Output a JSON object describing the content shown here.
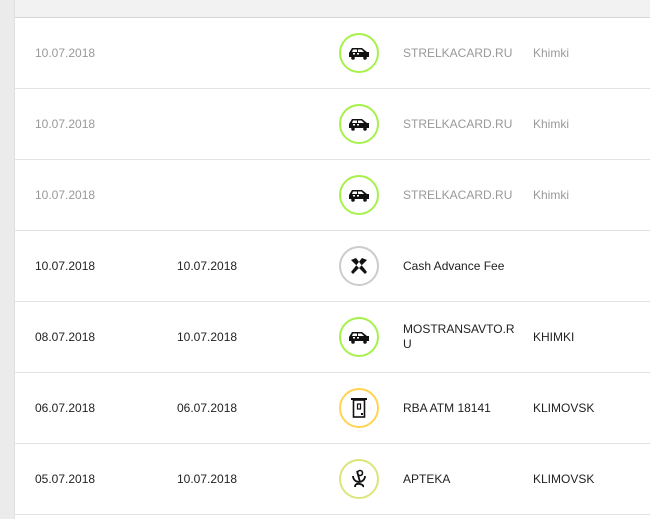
{
  "rows": [
    {
      "date": "10.07.2018",
      "posted": "",
      "icon": "car-icon",
      "ring": "#a6f14a",
      "description": "STRELKACARD.RU",
      "city": "Khimki",
      "pending": true
    },
    {
      "date": "10.07.2018",
      "posted": "",
      "icon": "car-icon",
      "ring": "#a6f14a",
      "description": "STRELKACARD.RU",
      "city": "Khimki",
      "pending": true
    },
    {
      "date": "10.07.2018",
      "posted": "",
      "icon": "car-icon",
      "ring": "#a6f14a",
      "description": "STRELKACARD.RU",
      "city": "Khimki",
      "pending": true
    },
    {
      "date": "10.07.2018",
      "posted": "10.07.2018",
      "icon": "bank-logo-icon",
      "ring": "#cccccc",
      "description": "Cash Advance Fee",
      "city": "",
      "pending": false
    },
    {
      "date": "08.07.2018",
      "posted": "10.07.2018",
      "icon": "car-icon",
      "ring": "#a6f14a",
      "description": "MOSTRANSAVTO.RU",
      "city": "KHIMKI",
      "pending": false
    },
    {
      "date": "06.07.2018",
      "posted": "06.07.2018",
      "icon": "atm-icon",
      "ring": "#ffd453",
      "description": "RBA ATM 18141",
      "city": "KLIMOVSK",
      "pending": false
    },
    {
      "date": "05.07.2018",
      "posted": "10.07.2018",
      "icon": "pharmacy-icon",
      "ring": "#dde57a",
      "description": "APTEKA",
      "city": "KLIMOVSK",
      "pending": false
    }
  ]
}
